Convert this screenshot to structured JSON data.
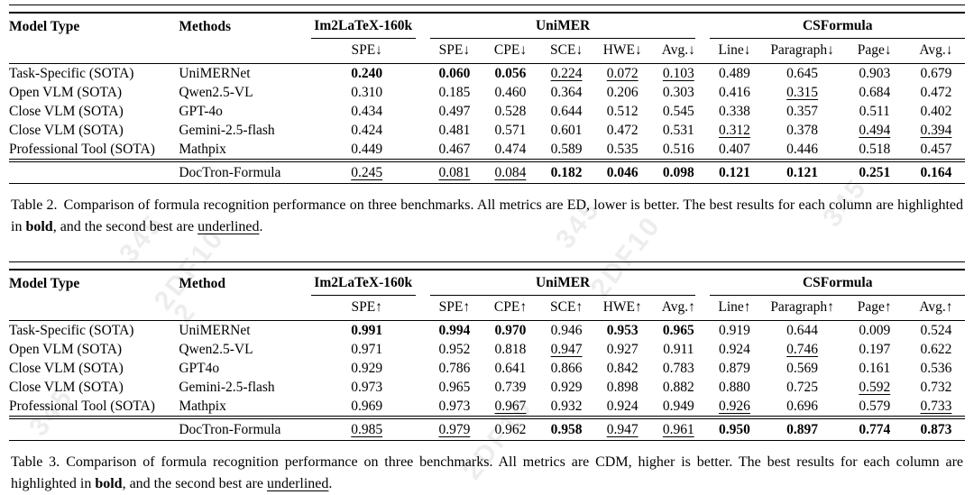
{
  "watermark": {
    "items": [
      {
        "text": "345"
      },
      {
        "text": "2DF10"
      },
      {
        "text": "2"
      },
      {
        "text": "345"
      },
      {
        "text": "2DF10"
      },
      {
        "text": "345"
      },
      {
        "text": "2DF10"
      },
      {
        "text": "345"
      }
    ]
  },
  "tables": [
    {
      "title_hint": "Table 2 - ED metrics, lower is better",
      "header": {
        "model_type": "Model Type",
        "method": "Methods",
        "group1": "Im2LaTeX-160k",
        "group2": "UniMER",
        "group3": "CSFormula",
        "metrics": [
          "SPE↓",
          "SPE↓",
          "CPE↓",
          "SCE↓",
          "HWE↓",
          "Avg.↓",
          "Line↓",
          "Paragraph↓",
          "Page↓",
          "Avg.↓"
        ]
      },
      "body_rows": [
        {
          "cells": [
            {
              "v": "Task-Specific (SOTA)"
            },
            {
              "v": "UniMERNet"
            },
            {
              "v": "0.240",
              "s": "b"
            },
            {
              "v": "0.060",
              "s": "b"
            },
            {
              "v": "0.056",
              "s": "b"
            },
            {
              "v": "0.224",
              "s": "u"
            },
            {
              "v": "0.072",
              "s": "u"
            },
            {
              "v": "0.103",
              "s": "u"
            },
            {
              "v": "0.489"
            },
            {
              "v": "0.645"
            },
            {
              "v": "0.903"
            },
            {
              "v": "0.679"
            }
          ]
        },
        {
          "cells": [
            {
              "v": "Open VLM (SOTA)"
            },
            {
              "v": "Qwen2.5-VL"
            },
            {
              "v": "0.310"
            },
            {
              "v": "0.185"
            },
            {
              "v": "0.460"
            },
            {
              "v": "0.364"
            },
            {
              "v": "0.206"
            },
            {
              "v": "0.303"
            },
            {
              "v": "0.416"
            },
            {
              "v": "0.315",
              "s": "u"
            },
            {
              "v": "0.684"
            },
            {
              "v": "0.472"
            }
          ]
        },
        {
          "cells": [
            {
              "v": "Close VLM (SOTA)"
            },
            {
              "v": "GPT-4o"
            },
            {
              "v": "0.434"
            },
            {
              "v": "0.497"
            },
            {
              "v": "0.528"
            },
            {
              "v": "0.644"
            },
            {
              "v": "0.512"
            },
            {
              "v": "0.545"
            },
            {
              "v": "0.338"
            },
            {
              "v": "0.357"
            },
            {
              "v": "0.511"
            },
            {
              "v": "0.402"
            }
          ]
        },
        {
          "cells": [
            {
              "v": "Close VLM (SOTA)"
            },
            {
              "v": "Gemini-2.5-flash"
            },
            {
              "v": "0.424"
            },
            {
              "v": "0.481"
            },
            {
              "v": "0.571"
            },
            {
              "v": "0.601"
            },
            {
              "v": "0.472"
            },
            {
              "v": "0.531"
            },
            {
              "v": "0.312",
              "s": "u"
            },
            {
              "v": "0.378"
            },
            {
              "v": "0.494",
              "s": "u"
            },
            {
              "v": "0.394",
              "s": "u"
            }
          ]
        },
        {
          "cells": [
            {
              "v": "Professional Tool (SOTA)"
            },
            {
              "v": "Mathpix"
            },
            {
              "v": "0.449"
            },
            {
              "v": "0.467"
            },
            {
              "v": "0.474"
            },
            {
              "v": "0.589"
            },
            {
              "v": "0.535"
            },
            {
              "v": "0.516"
            },
            {
              "v": "0.407"
            },
            {
              "v": "0.446"
            },
            {
              "v": "0.518"
            },
            {
              "v": "0.457"
            }
          ]
        }
      ],
      "foot_rows": [
        {
          "cells": [
            {
              "v": ""
            },
            {
              "v": "DocTron-Formula"
            },
            {
              "v": "0.245",
              "s": "u"
            },
            {
              "v": "0.081",
              "s": "u"
            },
            {
              "v": "0.084",
              "s": "u"
            },
            {
              "v": "0.182",
              "s": "b"
            },
            {
              "v": "0.046",
              "s": "b"
            },
            {
              "v": "0.098",
              "s": "b"
            },
            {
              "v": "0.121",
              "s": "b"
            },
            {
              "v": "0.121",
              "s": "b"
            },
            {
              "v": "0.251",
              "s": "b"
            },
            {
              "v": "0.164",
              "s": "b"
            }
          ]
        }
      ],
      "caption": {
        "label": "Table 2.",
        "part1": "Comparison of formula recognition performance on three benchmarks. All metrics are ED, lower is better. The best results for each column are highlighted in ",
        "bold_word": "bold",
        "part2": ", and the second best are ",
        "underline_word": "underlined",
        "part3": "."
      }
    },
    {
      "title_hint": "Table 3 - CDM metrics, higher is better",
      "header": {
        "model_type": "Model Type",
        "method": "Method",
        "group1": "Im2LaTeX-160k",
        "group2": "UniMER",
        "group3": "CSFormula",
        "metrics": [
          "SPE↑",
          "SPE↑",
          "CPE↑",
          "SCE↑",
          "HWE↑",
          "Avg.↑",
          "Line↑",
          "Paragraph↑",
          "Page↑",
          "Avg.↑"
        ]
      },
      "body_rows": [
        {
          "cells": [
            {
              "v": "Task-Specific (SOTA)"
            },
            {
              "v": "UniMERNet"
            },
            {
              "v": "0.991",
              "s": "b"
            },
            {
              "v": "0.994",
              "s": "b"
            },
            {
              "v": "0.970",
              "s": "b"
            },
            {
              "v": "0.946"
            },
            {
              "v": "0.953",
              "s": "b"
            },
            {
              "v": "0.965",
              "s": "b"
            },
            {
              "v": "0.919"
            },
            {
              "v": "0.644"
            },
            {
              "v": "0.009"
            },
            {
              "v": "0.524"
            }
          ]
        },
        {
          "cells": [
            {
              "v": "Open VLM (SOTA)"
            },
            {
              "v": "Qwen2.5-VL"
            },
            {
              "v": "0.971"
            },
            {
              "v": "0.952"
            },
            {
              "v": "0.818"
            },
            {
              "v": "0.947",
              "s": "u"
            },
            {
              "v": "0.927"
            },
            {
              "v": "0.911"
            },
            {
              "v": "0.924"
            },
            {
              "v": "0.746",
              "s": "u"
            },
            {
              "v": "0.197"
            },
            {
              "v": "0.622"
            }
          ]
        },
        {
          "cells": [
            {
              "v": "Close VLM (SOTA)"
            },
            {
              "v": "GPT4o"
            },
            {
              "v": "0.929"
            },
            {
              "v": "0.786"
            },
            {
              "v": "0.641"
            },
            {
              "v": "0.866"
            },
            {
              "v": "0.842"
            },
            {
              "v": "0.783"
            },
            {
              "v": "0.879"
            },
            {
              "v": "0.569"
            },
            {
              "v": "0.161"
            },
            {
              "v": "0.536"
            }
          ]
        },
        {
          "cells": [
            {
              "v": "Close VLM (SOTA)"
            },
            {
              "v": "Gemini-2.5-flash"
            },
            {
              "v": "0.973"
            },
            {
              "v": "0.965"
            },
            {
              "v": "0.739"
            },
            {
              "v": "0.929"
            },
            {
              "v": "0.898"
            },
            {
              "v": "0.882"
            },
            {
              "v": "0.880"
            },
            {
              "v": "0.725"
            },
            {
              "v": "0.592",
              "s": "u"
            },
            {
              "v": "0.732"
            }
          ]
        },
        {
          "cells": [
            {
              "v": "Professional Tool (SOTA)"
            },
            {
              "v": "Mathpix"
            },
            {
              "v": "0.969"
            },
            {
              "v": "0.973"
            },
            {
              "v": "0.967",
              "s": "u"
            },
            {
              "v": "0.932"
            },
            {
              "v": "0.924"
            },
            {
              "v": "0.949"
            },
            {
              "v": "0.926",
              "s": "u"
            },
            {
              "v": "0.696"
            },
            {
              "v": "0.579"
            },
            {
              "v": "0.733",
              "s": "u"
            }
          ]
        }
      ],
      "foot_rows": [
        {
          "cells": [
            {
              "v": ""
            },
            {
              "v": "DocTron-Formula"
            },
            {
              "v": "0.985",
              "s": "u"
            },
            {
              "v": "0.979",
              "s": "u"
            },
            {
              "v": "0.962"
            },
            {
              "v": "0.958",
              "s": "b"
            },
            {
              "v": "0.947",
              "s": "u"
            },
            {
              "v": "0.961",
              "s": "u"
            },
            {
              "v": "0.950",
              "s": "b"
            },
            {
              "v": "0.897",
              "s": "b"
            },
            {
              "v": "0.774",
              "s": "b"
            },
            {
              "v": "0.873",
              "s": "b"
            }
          ]
        }
      ],
      "caption": {
        "label": "Table 3.",
        "part1": "Comparison of formula recognition performance on three benchmarks. All metrics are CDM, higher is better. The best results for each column are highlighted in ",
        "bold_word": "bold",
        "part2": ", and the second best are ",
        "underline_word": "underlined",
        "part3": "."
      }
    }
  ]
}
